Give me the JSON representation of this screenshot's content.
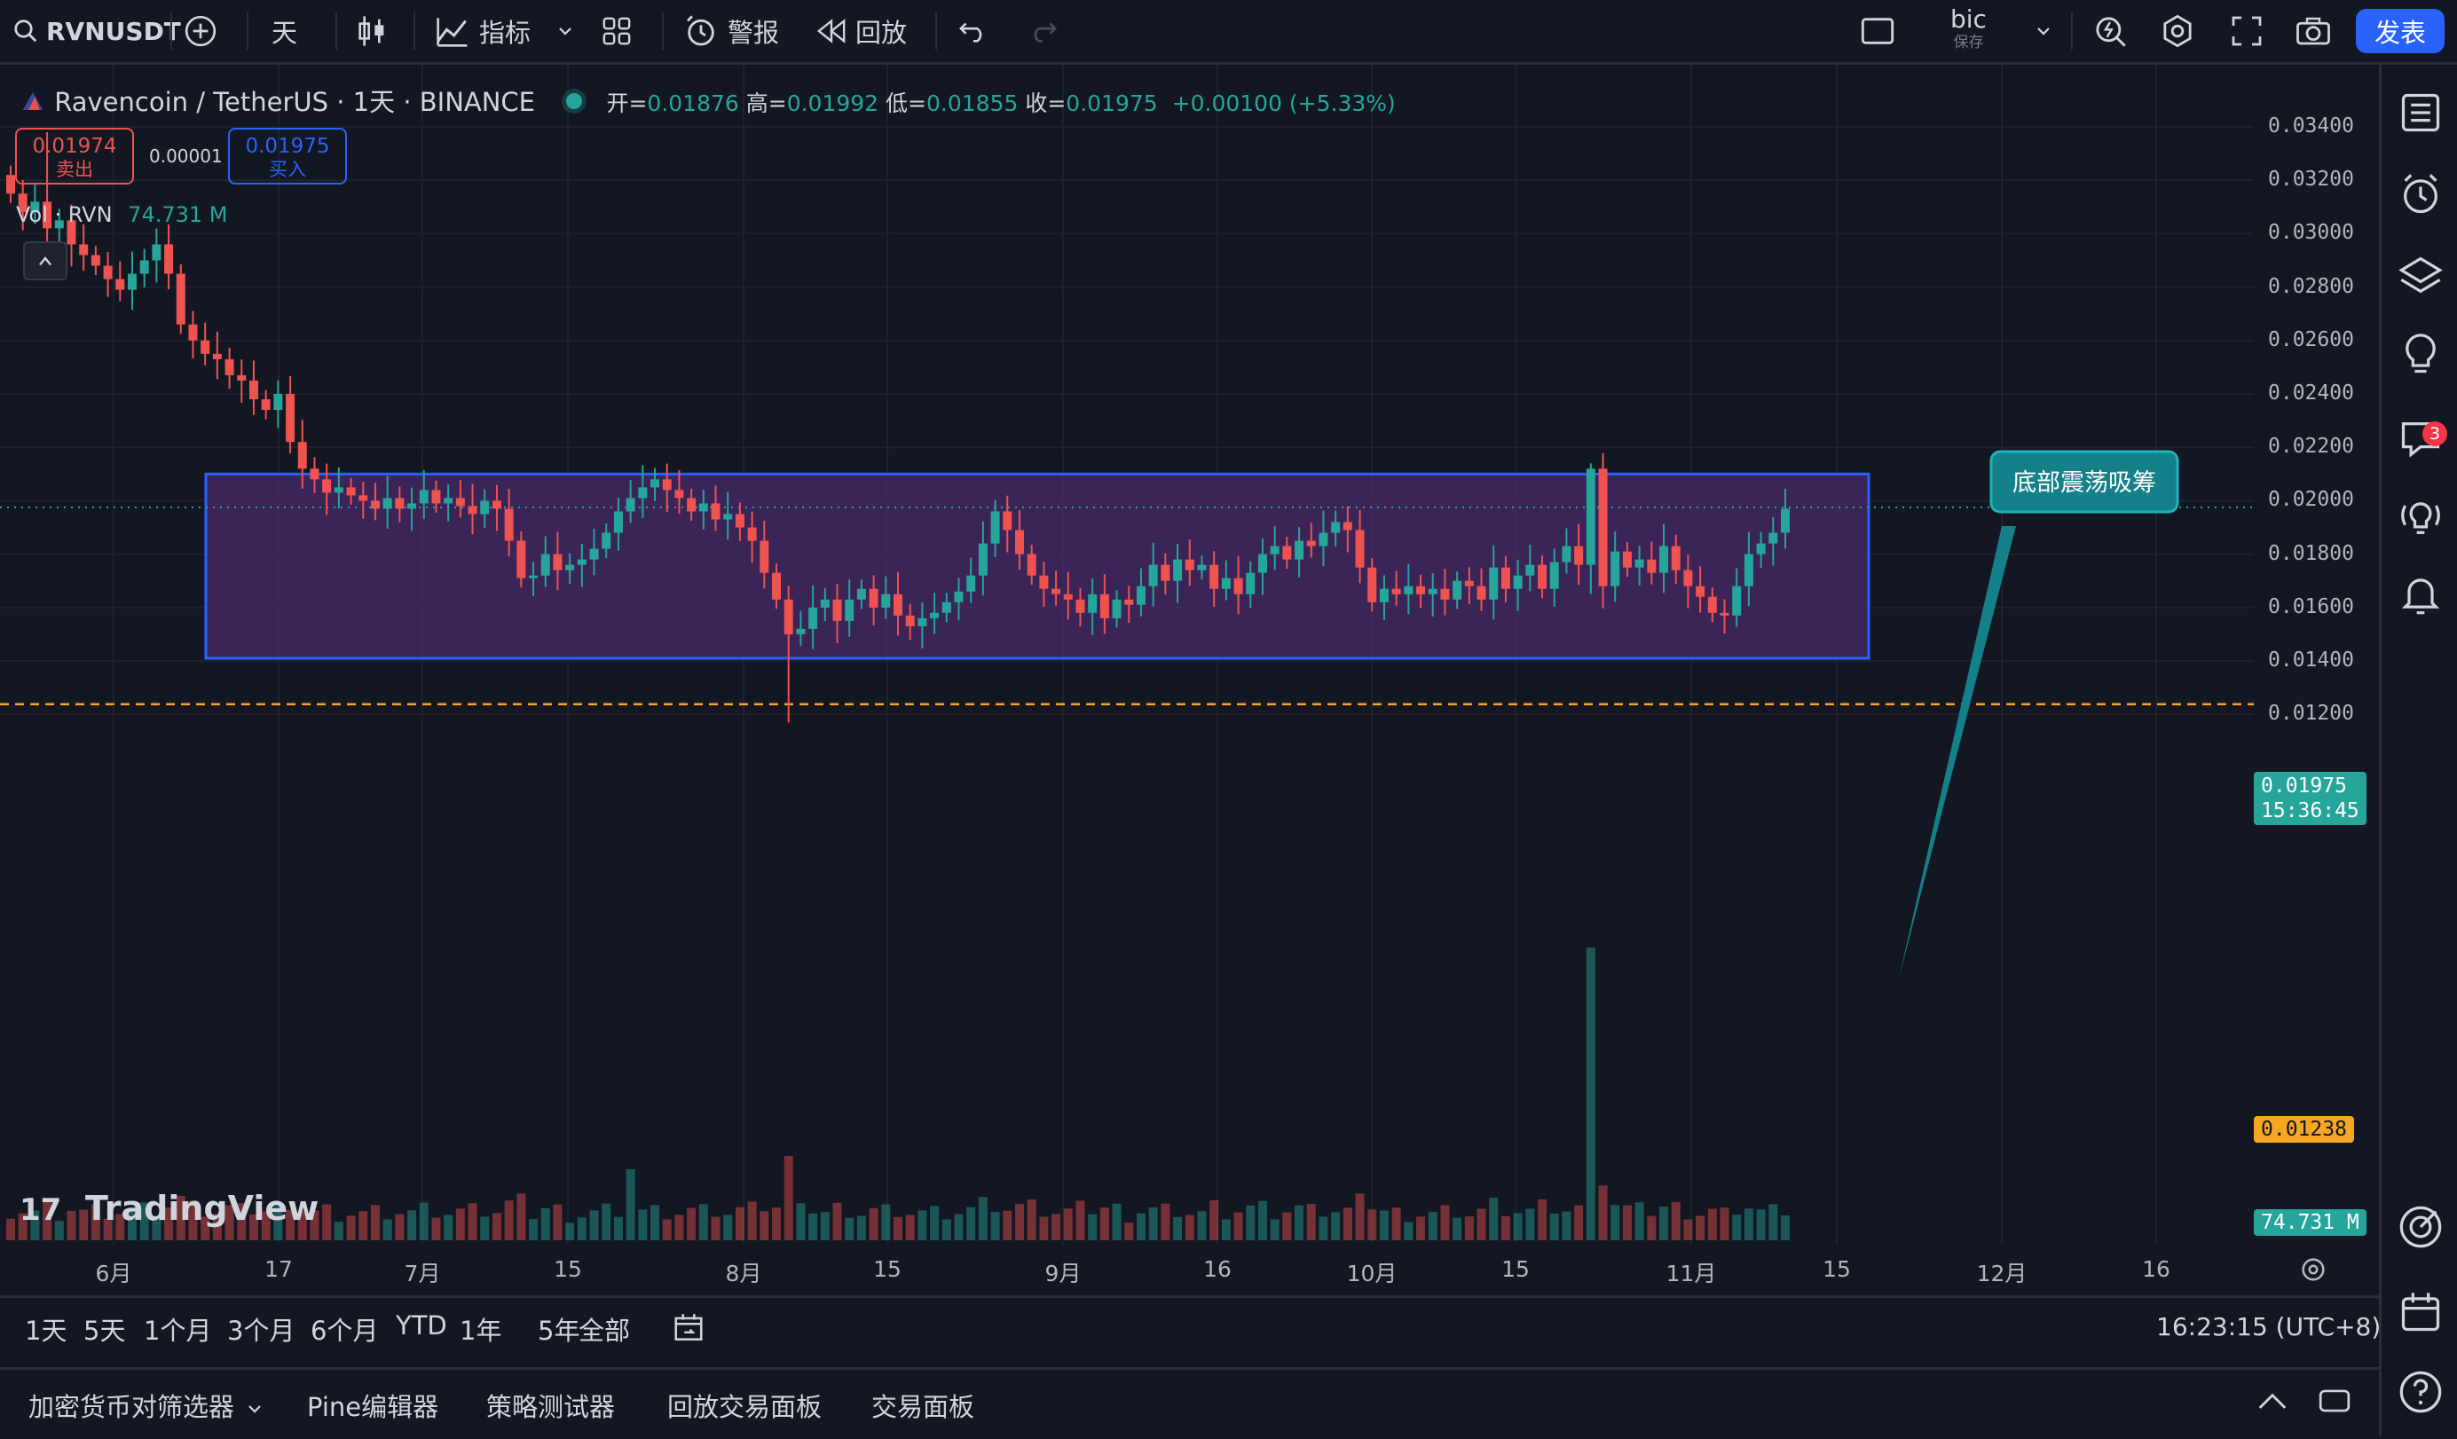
{
  "toolbar": {
    "symbol": "RVNUSDT",
    "interval": "天",
    "indicators_label": "指标",
    "alerts_label": "警报",
    "replay_label": "回放",
    "layout_name": "bic",
    "layout_saved": "保存",
    "publish_label": "发表"
  },
  "legend": {
    "title": "Ravencoin / TetherUS · 1天 · BINANCE",
    "open_label": "开=",
    "open": "0.01876",
    "high_label": "高=",
    "high": "0.01992",
    "low_label": "低=",
    "low": "0.01855",
    "close_label": "收=",
    "close": "0.01975",
    "change": "+0.00100 (+5.33%)",
    "sell_price": "0.01974",
    "sell_label": "卖出",
    "spread": "0.00001",
    "buy_price": "0.01975",
    "buy_label": "买入",
    "vol_label": "Vol · RVN",
    "vol_value": "74.731 M"
  },
  "price_axis": [
    "0.03400",
    "0.03200",
    "0.03000",
    "0.02800",
    "0.02600",
    "0.02400",
    "0.02200",
    "0.02000",
    "0.01800",
    "0.01600",
    "0.01400",
    "0.01200"
  ],
  "time_axis": [
    "6月",
    "17",
    "7月",
    "15",
    "8月",
    "15",
    "9月",
    "16",
    "10月",
    "15",
    "11月",
    "15",
    "12月",
    "16"
  ],
  "current_price": "0.01975",
  "countdown": "15:36:45",
  "support_price": "0.01238",
  "volume_tag": "74.731 M",
  "annotation": "底部震荡吸筹",
  "watermark": "TradingView",
  "ranges": [
    "1天",
    "5天",
    "1个月",
    "3个月",
    "6个月",
    "YTD",
    "1年",
    "5年",
    "全部"
  ],
  "clock": "16:23:15 (UTC+8)",
  "bottom_tabs": [
    "加密货币对筛选器",
    "Pine编辑器",
    "策略测试器",
    "回放交易面板",
    "交易面板"
  ],
  "notification_count": "3",
  "colors": {
    "up": "#26a69a",
    "down": "#ef5350",
    "box_fill": "#4a2a6a",
    "box_border": "#2962ff",
    "callout": "#14818a",
    "support": "#f5a623"
  },
  "chart_data": {
    "type": "candlestick",
    "series_closes": [
      0.0315,
      0.0308,
      0.0312,
      0.0302,
      0.0305,
      0.0296,
      0.0292,
      0.0288,
      0.0283,
      0.0279,
      0.0285,
      0.029,
      0.0296,
      0.0285,
      0.0266,
      0.026,
      0.0255,
      0.0253,
      0.0247,
      0.0245,
      0.0238,
      0.0234,
      0.024,
      0.0222,
      0.0212,
      0.0208,
      0.0203,
      0.0205,
      0.0202,
      0.02,
      0.0197,
      0.0201,
      0.0197,
      0.0199,
      0.0204,
      0.0199,
      0.0201,
      0.0198,
      0.0195,
      0.02,
      0.0197,
      0.0185,
      0.0171,
      0.0172,
      0.018,
      0.0174,
      0.0176,
      0.0178,
      0.0182,
      0.0188,
      0.0196,
      0.0201,
      0.0205,
      0.0208,
      0.0204,
      0.0201,
      0.0196,
      0.0199,
      0.0193,
      0.0195,
      0.019,
      0.0185,
      0.0173,
      0.0163,
      0.015,
      0.0152,
      0.016,
      0.0163,
      0.0155,
      0.0163,
      0.0167,
      0.016,
      0.0165,
      0.0157,
      0.0153,
      0.0156,
      0.0158,
      0.0162,
      0.0166,
      0.0172,
      0.0184,
      0.0196,
      0.0189,
      0.018,
      0.0172,
      0.0167,
      0.0165,
      0.0163,
      0.0158,
      0.0165,
      0.0156,
      0.0163,
      0.0161,
      0.0168,
      0.0176,
      0.017,
      0.0178,
      0.0174,
      0.0176,
      0.0167,
      0.0171,
      0.0165,
      0.0173,
      0.018,
      0.0183,
      0.0178,
      0.0185,
      0.0183,
      0.0188,
      0.0192,
      0.0189,
      0.0175,
      0.0162,
      0.0167,
      0.0165,
      0.0168,
      0.0165,
      0.0167,
      0.0163,
      0.017,
      0.0168,
      0.0163,
      0.0175,
      0.0167,
      0.0172,
      0.0176,
      0.0167,
      0.0177,
      0.0183,
      0.0176,
      0.0212,
      0.0168,
      0.0181,
      0.0175,
      0.0178,
      0.0173,
      0.0183,
      0.0174,
      0.0168,
      0.0164,
      0.0158,
      0.0157,
      0.0168,
      0.018,
      0.0184,
      0.0188,
      0.0197
    ],
    "price_range": [
      0.01,
      0.035
    ],
    "consolidation_box": {
      "top": 0.021,
      "bottom": 0.0141
    },
    "support_line": 0.01238,
    "last_price": 0.01975
  }
}
